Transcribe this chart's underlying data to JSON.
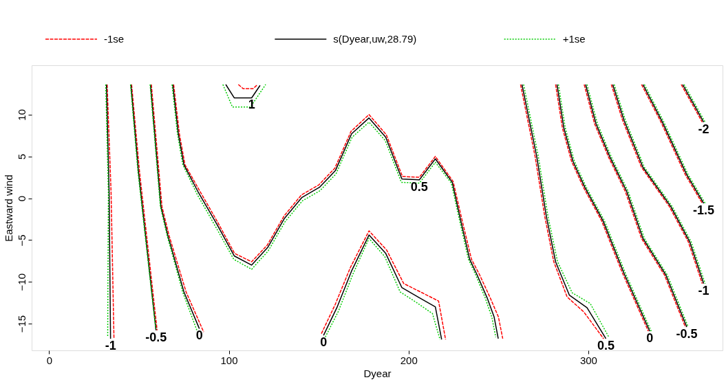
{
  "chart_data": {
    "type": "line",
    "xlabel": "Dyear",
    "ylabel": "Eastward wind",
    "xlim": [
      -9.7,
      374.7
    ],
    "ylim": [
      -18.2,
      15.9
    ],
    "xticks": [
      0,
      100,
      200,
      300
    ],
    "yticks": [
      -15,
      -10,
      -5,
      0,
      5,
      10
    ],
    "grid": false,
    "legend": "top",
    "series": [
      {
        "name": "-1se",
        "color": "#ff0000",
        "line_style": "dashed",
        "x": [
          32.3,
          34.5,
          36.1
        ],
        "values": [
          13.6,
          0.6,
          -16.8
        ]
      },
      {
        "color": "#ff0000",
        "line_style": "dashed",
        "x": [
          45.9,
          50.3,
          60.1
        ],
        "values": [
          13.6,
          3.2,
          -15.8
        ]
      },
      {
        "color": "#ff0000",
        "line_style": "dashed",
        "x": [
          56.9,
          62.8,
          66.8,
          76.2,
          86.0
        ],
        "values": [
          13.6,
          -1.0,
          -4.5,
          -11.2,
          -16.0
        ]
      },
      {
        "color": "#ff0000",
        "line_style": "dashed",
        "x": [
          69.3,
          72.5,
          75.6,
          83.2,
          93.6,
          103.2,
          112.7,
          121.4,
          130.8,
          140.4,
          150.1,
          159.0,
          168.0,
          178.0,
          187.6,
          196.6,
          206.0,
          214.9,
          224.8,
          229.3,
          235.0,
          239.6,
          245.4,
          250.0,
          252.4
        ],
        "values": [
          13.6,
          7.7,
          4.0,
          1.1,
          -2.8,
          -6.6,
          -7.6,
          -5.6,
          -2.1,
          0.4,
          1.6,
          3.6,
          8.0,
          10.0,
          7.6,
          2.6,
          2.5,
          5.0,
          2.0,
          -2.2,
          -7.3,
          -9.2,
          -11.9,
          -14.2,
          -16.8
        ]
      },
      {
        "color": "#ff0000",
        "line_style": "dashed",
        "x": [
          151.5,
          159.2,
          167.6,
          178.0,
          187.8,
          197.3,
          207.5,
          216.7,
          220.6
        ],
        "values": [
          -16.2,
          -12.7,
          -8.3,
          -3.9,
          -6.2,
          -10.2,
          -11.3,
          -12.3,
          -16.9
        ]
      },
      {
        "color": "#ff0000",
        "line_style": "dashed",
        "x": [
          105.3,
          108.0,
          113.5,
          116.0
        ],
        "values": [
          13.6,
          13.1,
          13.1,
          13.6
        ]
      },
      {
        "color": "#ff0000",
        "line_style": "dashed",
        "x": [
          262.3,
          270.4,
          275.8,
          280.8,
          288.2,
          297.5,
          308.5
        ],
        "values": [
          13.6,
          5.0,
          -2.2,
          -7.6,
          -11.8,
          -13.6,
          -16.8
        ]
      },
      {
        "color": "#ff0000",
        "line_style": "dashed",
        "x": [
          281.8,
          285.6,
          290.7,
          297.3,
          307.4,
          319.1,
          333.4
        ],
        "values": [
          13.6,
          8.4,
          4.4,
          1.3,
          -2.7,
          -9.0,
          -15.9
        ]
      },
      {
        "color": "#ff0000",
        "line_style": "dashed",
        "x": [
          297.7,
          303.5,
          311.3,
          320.6,
          329.6,
          342.4,
          354.0
        ],
        "values": [
          13.6,
          8.9,
          4.9,
          0.8,
          -4.8,
          -9.2,
          -15.4
        ]
      },
      {
        "color": "#ff0000",
        "line_style": "dashed",
        "x": [
          312.8,
          319.1,
          329.6,
          345.1,
          355.6,
          363.4
        ],
        "values": [
          13.6,
          9.3,
          3.7,
          -1.0,
          -5.2,
          -10.2
        ]
      },
      {
        "color": "#ff0000",
        "line_style": "dashed",
        "x": [
          329.6,
          340.0,
          354.0,
          363.4
        ],
        "values": [
          13.6,
          9.3,
          2.8,
          -0.6
        ]
      },
      {
        "color": "#ff0000",
        "line_style": "dashed",
        "x": [
          351.7,
          363.4
        ],
        "values": [
          13.6,
          9.1
        ]
      },
      {
        "name": "s(Dyear,uw,28.79)",
        "color": "#000000",
        "line_style": "solid",
        "x": [
          31.9,
          33.4,
          34.2
        ],
        "values": [
          13.6,
          0.6,
          -16.8
        ]
      },
      {
        "color": "#000000",
        "line_style": "solid",
        "x": [
          45.5,
          49.7,
          59.5
        ],
        "values": [
          13.6,
          3.2,
          -15.8
        ]
      },
      {
        "color": "#000000",
        "line_style": "solid",
        "x": [
          56.4,
          62.2,
          66.1,
          75.0,
          83.6
        ],
        "values": [
          13.6,
          -1.0,
          -4.5,
          -11.2,
          -15.6
        ]
      },
      {
        "color": "#000000",
        "line_style": "solid",
        "x": [
          68.8,
          71.9,
          75.0,
          82.8,
          93.3,
          103.0,
          112.7,
          121.6,
          131.0,
          140.7,
          150.4,
          159.3,
          168.3,
          178.0,
          187.3,
          196.3,
          206.0,
          214.9,
          224.3,
          228.5,
          234.0,
          238.2,
          243.7,
          247.6,
          249.9
        ],
        "values": [
          13.6,
          7.7,
          4.0,
          0.8,
          -3.1,
          -6.9,
          -8.0,
          -5.9,
          -2.4,
          0.1,
          1.3,
          3.3,
          7.7,
          9.6,
          7.3,
          2.3,
          2.2,
          4.7,
          1.9,
          -2.2,
          -7.3,
          -9.2,
          -11.9,
          -14.2,
          -16.8
        ]
      },
      {
        "color": "#000000",
        "line_style": "solid",
        "x": [
          152.7,
          160.1,
          168.3,
          178.0,
          187.3,
          196.3,
          206.0,
          214.9,
          218.4
        ],
        "values": [
          -16.4,
          -13.1,
          -8.7,
          -4.4,
          -6.6,
          -10.7,
          -11.9,
          -13.0,
          -16.9
        ]
      },
      {
        "color": "#000000",
        "line_style": "solid",
        "x": [
          98.3,
          103.0,
          112.7,
          117.4
        ],
        "values": [
          13.6,
          12.0,
          12.0,
          13.5
        ]
      },
      {
        "color": "#000000",
        "line_style": "solid",
        "x": [
          263.1,
          271.3,
          276.7,
          281.8,
          289.5,
          299.3,
          309.8
        ],
        "values": [
          13.6,
          5.0,
          -2.2,
          -7.6,
          -11.6,
          -13.1,
          -16.8
        ]
      },
      {
        "color": "#000000",
        "line_style": "solid",
        "x": [
          282.6,
          286.4,
          291.5,
          298.1,
          308.2,
          319.9,
          334.2
        ],
        "values": [
          13.6,
          8.4,
          4.4,
          1.3,
          -2.7,
          -9.0,
          -15.9
        ]
      },
      {
        "color": "#000000",
        "line_style": "solid",
        "x": [
          298.5,
          304.3,
          312.1,
          321.4,
          330.4,
          343.2,
          354.8
        ],
        "values": [
          13.6,
          8.9,
          4.9,
          0.8,
          -4.8,
          -9.2,
          -15.4
        ]
      },
      {
        "color": "#000000",
        "line_style": "solid",
        "x": [
          313.6,
          319.9,
          330.4,
          345.9,
          356.4,
          364.2
        ],
        "values": [
          13.6,
          9.3,
          3.7,
          -1.0,
          -5.2,
          -10.2
        ]
      },
      {
        "color": "#000000",
        "line_style": "solid",
        "x": [
          330.4,
          340.8,
          354.8,
          364.2
        ],
        "values": [
          13.6,
          9.3,
          2.8,
          -0.6
        ]
      },
      {
        "color": "#000000",
        "line_style": "solid",
        "x": [
          352.5,
          364.2
        ],
        "values": [
          13.6,
          9.1
        ]
      },
      {
        "name": "+1se",
        "color": "#00cc00",
        "line_style": "dotted",
        "x": [
          31.5,
          33.0,
          32.6
        ],
        "values": [
          13.6,
          0.6,
          -16.5
        ]
      },
      {
        "color": "#00cc00",
        "line_style": "dotted",
        "x": [
          45.3,
          49.4,
          59.3
        ],
        "values": [
          13.6,
          3.2,
          -15.6
        ]
      },
      {
        "color": "#00cc00",
        "line_style": "dotted",
        "x": [
          56.2,
          61.9,
          65.7,
          74.3,
          82.4
        ],
        "values": [
          13.6,
          -1.0,
          -4.5,
          -11.2,
          -15.9
        ]
      },
      {
        "color": "#00cc00",
        "line_style": "dotted",
        "x": [
          68.4,
          71.4,
          74.4,
          82.3,
          92.9,
          102.7,
          112.7,
          121.9,
          131.3,
          141.0,
          150.7,
          159.6,
          168.6,
          178.0,
          187.0,
          196.0,
          206.0,
          214.9,
          223.8,
          227.9,
          233.3,
          237.4,
          242.6,
          246.3,
          248.5
        ],
        "values": [
          13.6,
          7.7,
          4.0,
          0.5,
          -3.5,
          -7.3,
          -8.5,
          -6.3,
          -2.8,
          -0.3,
          0.9,
          2.9,
          7.3,
          9.1,
          6.9,
          1.9,
          1.8,
          4.3,
          1.8,
          -2.2,
          -7.3,
          -9.2,
          -11.9,
          -14.2,
          -16.6
        ]
      },
      {
        "color": "#00cc00",
        "line_style": "dotted",
        "x": [
          153.7,
          161.0,
          169.0,
          178.0,
          186.8,
          195.3,
          204.6,
          213.3,
          217.5
        ],
        "values": [
          -16.6,
          -13.5,
          -9.1,
          -4.8,
          -7.0,
          -11.2,
          -12.5,
          -13.8,
          -16.9
        ]
      },
      {
        "color": "#00cc00",
        "line_style": "dotted",
        "x": [
          96.7,
          102.0,
          112.0,
          120.5
        ],
        "values": [
          13.6,
          10.9,
          10.9,
          13.6
        ]
      },
      {
        "color": "#00cc00",
        "line_style": "dotted",
        "x": [
          264.0,
          272.2,
          277.6,
          282.9,
          291.0,
          301.1,
          311.4
        ],
        "values": [
          13.6,
          5.0,
          -2.2,
          -7.6,
          -11.3,
          -12.6,
          -16.6
        ]
      },
      {
        "color": "#00cc00",
        "line_style": "dotted",
        "x": [
          283.4,
          287.2,
          292.3,
          298.9,
          309.0,
          320.7,
          335.0
        ],
        "values": [
          13.6,
          8.4,
          4.4,
          1.3,
          -2.7,
          -9.0,
          -15.9
        ]
      },
      {
        "color": "#00cc00",
        "line_style": "dotted",
        "x": [
          299.3,
          305.1,
          312.9,
          322.2,
          331.2,
          344.0,
          355.6
        ],
        "values": [
          13.6,
          8.9,
          4.9,
          0.8,
          -4.8,
          -9.2,
          -15.4
        ]
      },
      {
        "color": "#00cc00",
        "line_style": "dotted",
        "x": [
          314.4,
          320.7,
          331.2,
          346.7,
          357.2,
          365.0
        ],
        "values": [
          13.6,
          9.3,
          3.7,
          -1.0,
          -5.2,
          -10.2
        ]
      },
      {
        "color": "#00cc00",
        "line_style": "dotted",
        "x": [
          331.2,
          341.6,
          355.6,
          365.0
        ],
        "values": [
          13.6,
          9.3,
          2.8,
          -0.6
        ]
      },
      {
        "color": "#00cc00",
        "line_style": "dotted",
        "x": [
          353.3,
          365.0
        ],
        "values": [
          13.6,
          9.1
        ]
      }
    ],
    "annotations": [
      {
        "text": "-1",
        "x": 34.2,
        "y": -16.8
      },
      {
        "text": "-0.5",
        "x": 59.5,
        "y": -15.8
      },
      {
        "text": "0",
        "x": 83.6,
        "y": -15.6
      },
      {
        "text": "0",
        "x": 152.7,
        "y": -16.4
      },
      {
        "text": "1",
        "x": 112.7,
        "y": 12.0
      },
      {
        "text": "0.5",
        "x": 206.0,
        "y": 2.2
      },
      {
        "text": "0.5",
        "x": 309.8,
        "y": -16.8
      },
      {
        "text": "0",
        "x": 334.2,
        "y": -15.9
      },
      {
        "text": "-0.5",
        "x": 354.8,
        "y": -15.4
      },
      {
        "text": "-2",
        "x": 364.2,
        "y": 9.1
      },
      {
        "text": "-1.5",
        "x": 364.2,
        "y": -0.6
      },
      {
        "text": "-1",
        "x": 364.2,
        "y": -10.2
      }
    ]
  }
}
